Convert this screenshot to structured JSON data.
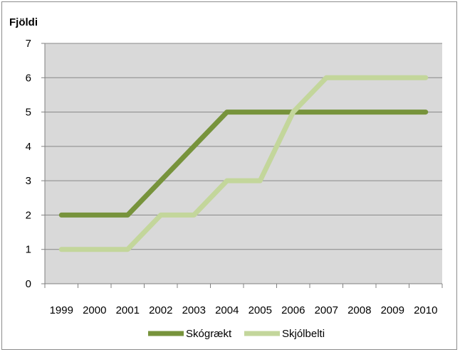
{
  "chart_data": {
    "type": "line",
    "ylabel": "Fjöldi",
    "xlabel": "",
    "title": "",
    "x": [
      "1999",
      "2000",
      "2001",
      "2002",
      "2003",
      "2004",
      "2005",
      "2006",
      "2007",
      "2008",
      "2009",
      "2010"
    ],
    "ylim": [
      0,
      7
    ],
    "yticks": [
      0,
      1,
      2,
      3,
      4,
      5,
      6,
      7
    ],
    "grid": "horizontal",
    "legend_position": "bottom",
    "series": [
      {
        "name": "Skógrækt",
        "color": "#77933c",
        "values": [
          2,
          2,
          2,
          3,
          4,
          5,
          5,
          5,
          5,
          5,
          5,
          5
        ]
      },
      {
        "name": "Skjólbelti",
        "color": "#c3d69b",
        "values": [
          1,
          1,
          1,
          2,
          2,
          3,
          3,
          5,
          6,
          6,
          6,
          6
        ]
      }
    ],
    "plot_background": "#d9d9d9",
    "gridline_color": "#888888"
  }
}
